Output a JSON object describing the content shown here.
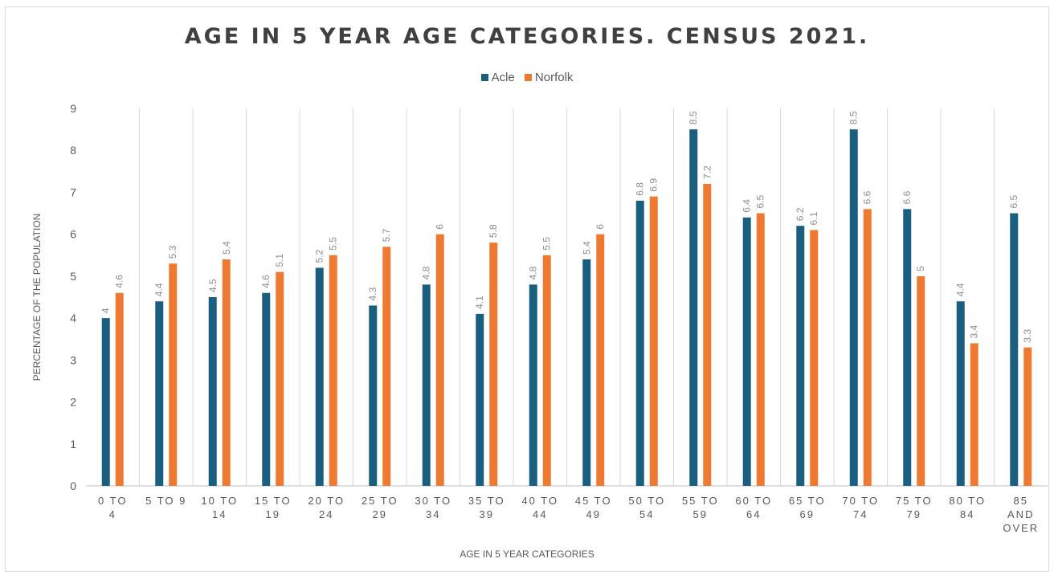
{
  "chart_data": {
    "type": "bar",
    "title": "AGE IN 5 YEAR AGE CATEGORIES. CENSUS 2021.",
    "xlabel": "AGE IN 5 YEAR CATEGORIES",
    "ylabel": "PERCENTAGE OF THE POPULATION",
    "ylim": [
      0,
      9
    ],
    "yticks": [
      0,
      1,
      2,
      3,
      4,
      5,
      6,
      7,
      8,
      9
    ],
    "grid": "vertical",
    "legend_position": "top",
    "categories": [
      [
        "0 TO",
        "4"
      ],
      [
        "5 TO 9"
      ],
      [
        "10 TO",
        "14"
      ],
      [
        "15 TO",
        "19"
      ],
      [
        "20 TO",
        "24"
      ],
      [
        "25 TO",
        "29"
      ],
      [
        "30 TO",
        "34"
      ],
      [
        "35 TO",
        "39"
      ],
      [
        "40 TO",
        "44"
      ],
      [
        "45 TO",
        "49"
      ],
      [
        "50 TO",
        "54"
      ],
      [
        "55 TO",
        "59"
      ],
      [
        "60 TO",
        "64"
      ],
      [
        "65 TO",
        "69"
      ],
      [
        "70 TO",
        "74"
      ],
      [
        "75 TO",
        "79"
      ],
      [
        "80 TO",
        "84"
      ],
      [
        "85",
        "AND",
        "OVER"
      ]
    ],
    "series": [
      {
        "name": "Acle",
        "color": "#1b5f80",
        "values": [
          4,
          4.4,
          4.5,
          4.6,
          5.2,
          4.3,
          4.8,
          4.1,
          4.8,
          5.4,
          6.8,
          8.5,
          6.4,
          6.2,
          8.5,
          6.6,
          4.4,
          6.5
        ]
      },
      {
        "name": "Norfolk",
        "color": "#ee7a32",
        "values": [
          4.6,
          5.3,
          5.4,
          5.1,
          5.5,
          5.7,
          6,
          5.8,
          5.5,
          6,
          6.9,
          7.2,
          6.5,
          6.1,
          6.6,
          5,
          3.4,
          3.3
        ]
      }
    ]
  }
}
